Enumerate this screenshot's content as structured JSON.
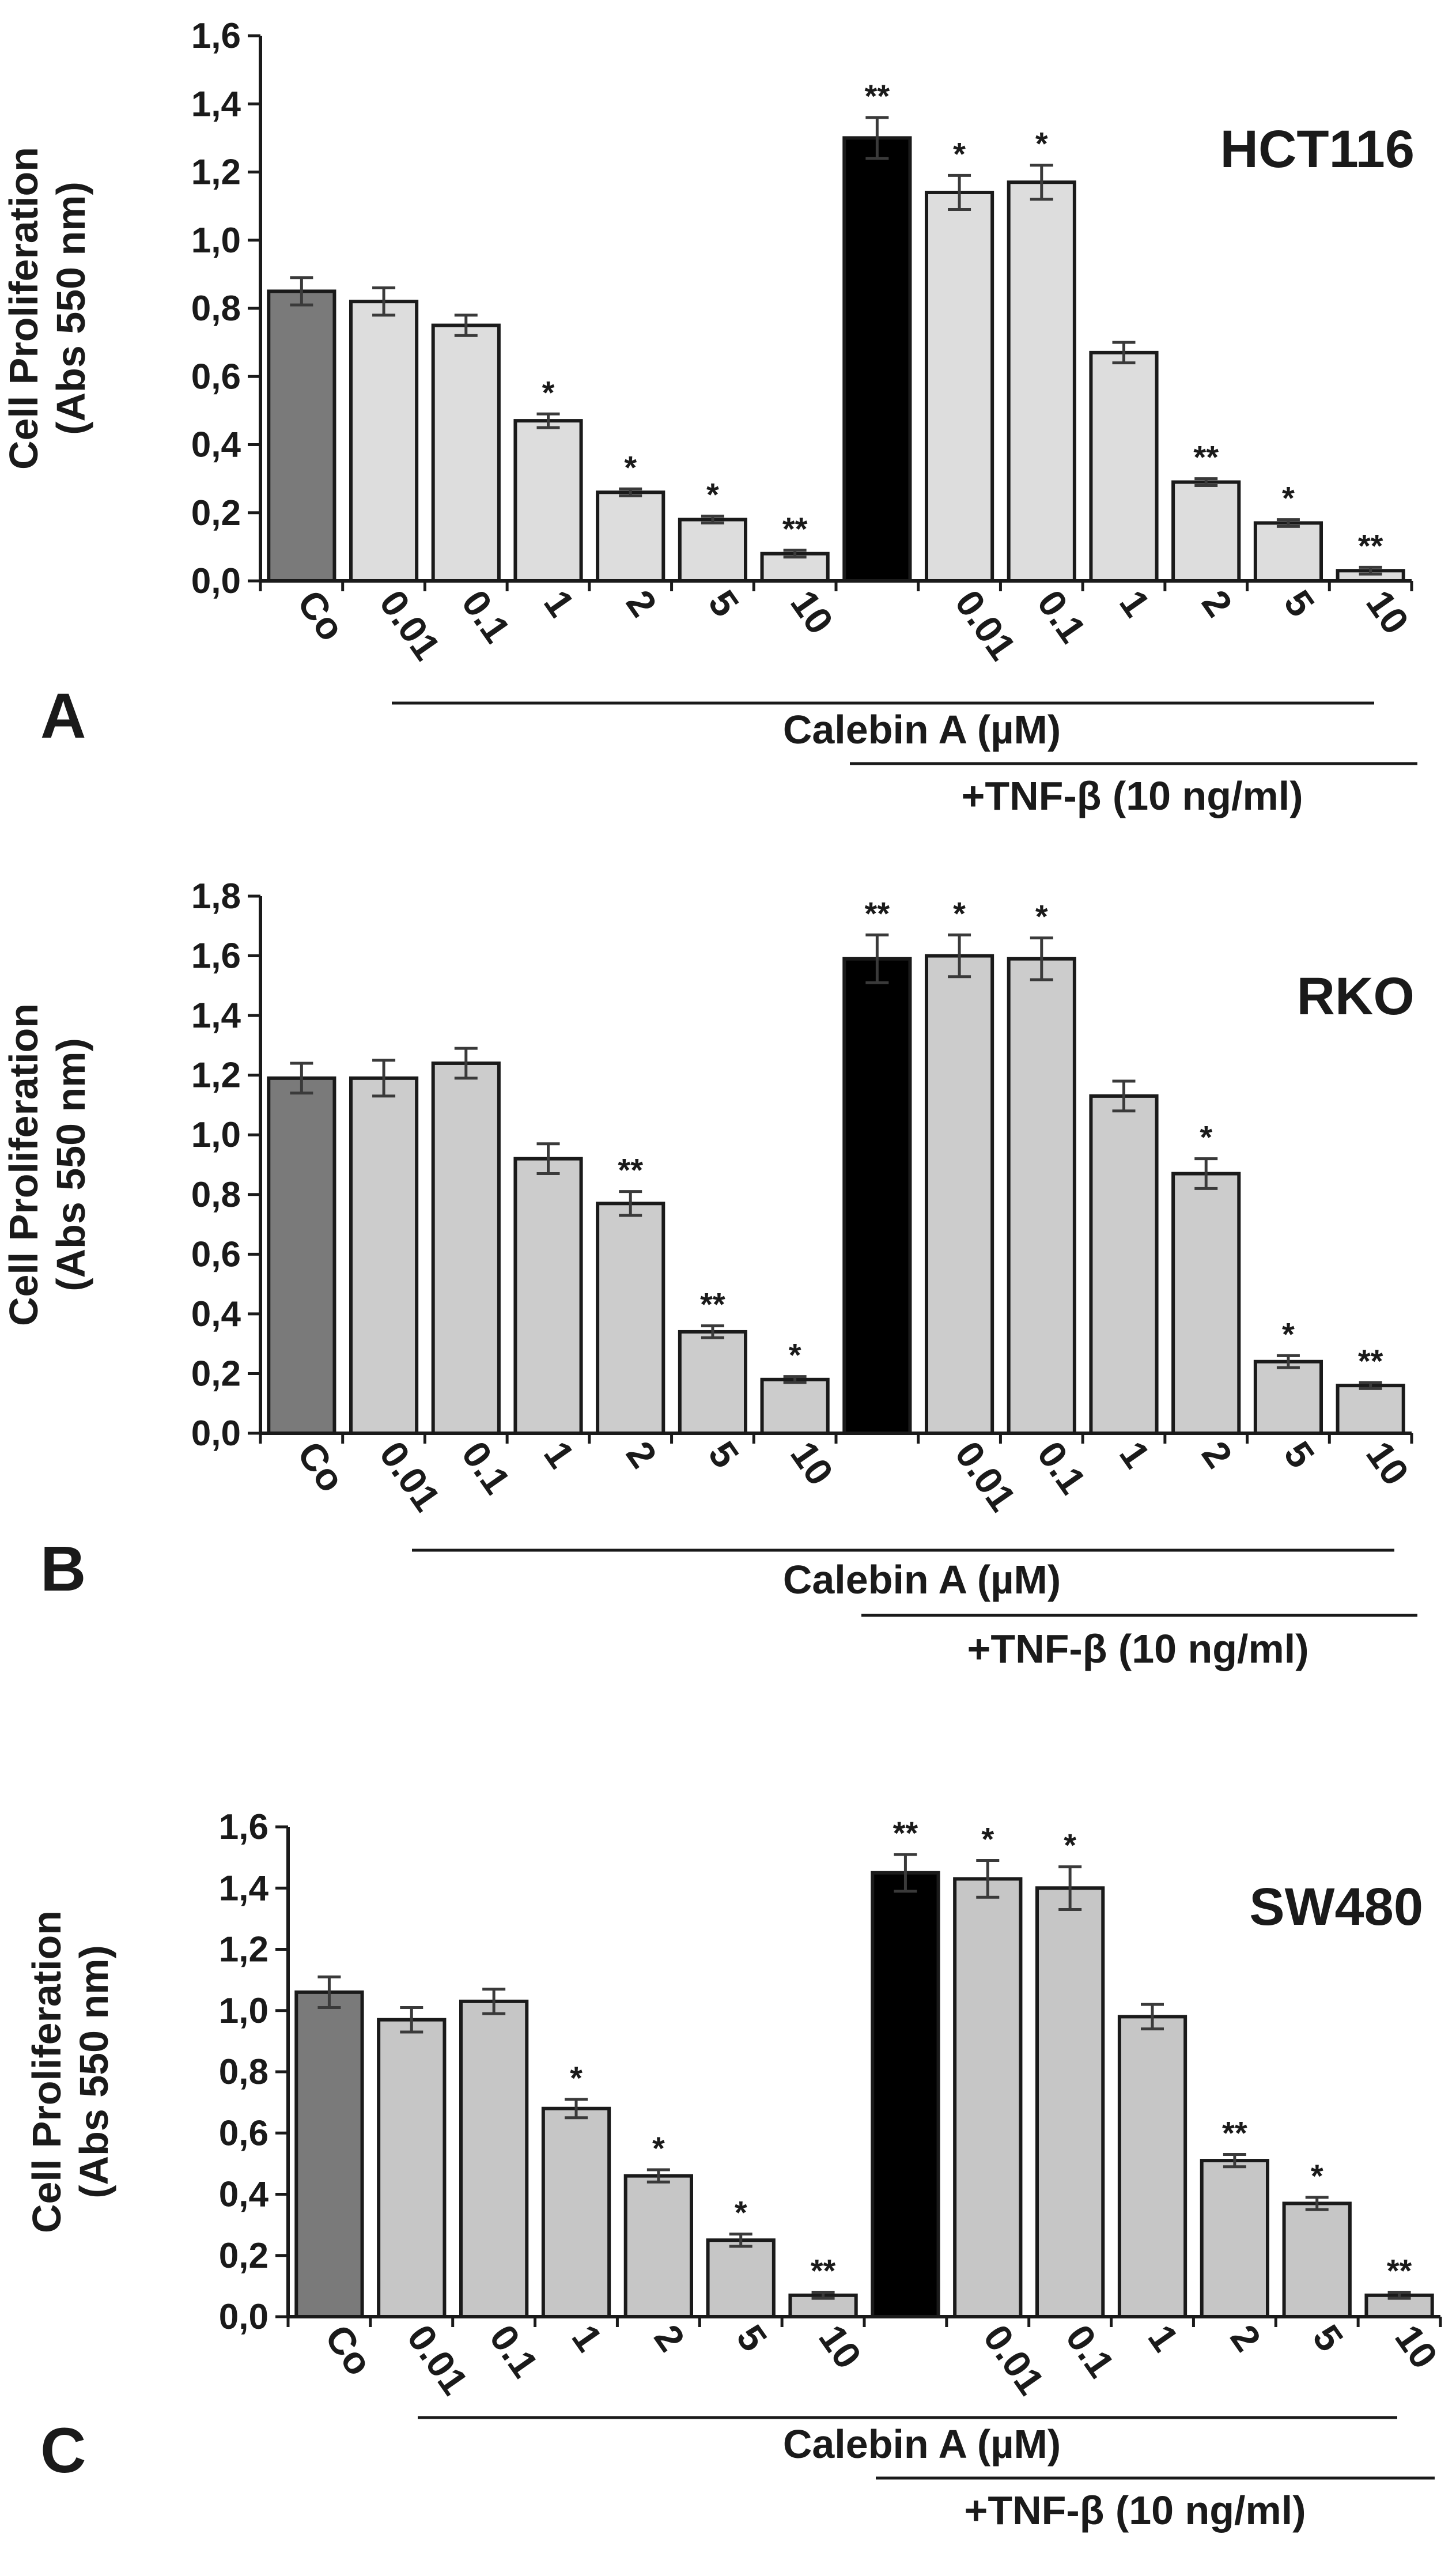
{
  "colors": {
    "control": "#7a7a7a",
    "tnf": "#000000",
    "calebin_a": "#dddddd",
    "calebin_b": "#cccccc",
    "calebin_c": "#c6c6c6"
  },
  "chart_data": [
    {
      "type": "bar",
      "panel": "A",
      "cell_line": "HCT116",
      "ylabel_line1": "Cell Proliferation",
      "ylabel_line2": "(Abs 550 nm)",
      "ylim": [
        0,
        1.6
      ],
      "yticks": [
        "0,0",
        "0,2",
        "0,4",
        "0,6",
        "0,8",
        "1,0",
        "1,2",
        "1,4",
        "1,6"
      ],
      "categories": [
        "Co",
        "0.01",
        "0.1",
        "1",
        "2",
        "5",
        "10",
        "",
        "0.01",
        "0.1",
        "1",
        "2",
        "5",
        "10"
      ],
      "values": [
        0.85,
        0.82,
        0.75,
        0.47,
        0.26,
        0.18,
        0.08,
        1.3,
        1.14,
        1.17,
        0.67,
        0.29,
        0.17,
        0.03
      ],
      "errors": [
        0.04,
        0.04,
        0.03,
        0.02,
        0.01,
        0.01,
        0.01,
        0.06,
        0.05,
        0.05,
        0.03,
        0.01,
        0.01,
        0.01
      ],
      "stars": [
        "",
        "",
        "",
        "*",
        "*",
        "*",
        "**",
        "**",
        "*",
        "*",
        "",
        "**",
        "*",
        "**"
      ],
      "bar_kinds": [
        "control",
        "calebin",
        "calebin",
        "calebin",
        "calebin",
        "calebin",
        "calebin",
        "tnf",
        "calebin",
        "calebin",
        "calebin",
        "calebin",
        "calebin",
        "calebin"
      ],
      "bracket_calebin": "Calebin A (µM)",
      "bracket_tnf": "+TNF-β (10 ng/ml)"
    },
    {
      "type": "bar",
      "panel": "B",
      "cell_line": "RKO",
      "ylabel_line1": "Cell Proliferation",
      "ylabel_line2": "(Abs 550 nm)",
      "ylim": [
        0,
        1.8
      ],
      "yticks": [
        "0,0",
        "0,2",
        "0,4",
        "0,6",
        "0,8",
        "1,0",
        "1,2",
        "1,4",
        "1,6",
        "1,8"
      ],
      "categories": [
        "Co",
        "0.01",
        "0.1",
        "1",
        "2",
        "5",
        "10",
        "",
        "0.01",
        "0.1",
        "1",
        "2",
        "5",
        "10"
      ],
      "values": [
        1.19,
        1.19,
        1.24,
        0.92,
        0.77,
        0.34,
        0.18,
        1.59,
        1.6,
        1.59,
        1.13,
        0.87,
        0.24,
        0.16
      ],
      "errors": [
        0.05,
        0.06,
        0.05,
        0.05,
        0.04,
        0.02,
        0.01,
        0.08,
        0.07,
        0.07,
        0.05,
        0.05,
        0.02,
        0.01
      ],
      "stars": [
        "",
        "",
        "",
        "",
        "**",
        "**",
        "*",
        "**",
        "*",
        "*",
        "",
        "*",
        "*",
        "**"
      ],
      "bar_kinds": [
        "control",
        "calebin",
        "calebin",
        "calebin",
        "calebin",
        "calebin",
        "calebin",
        "tnf",
        "calebin",
        "calebin",
        "calebin",
        "calebin",
        "calebin",
        "calebin"
      ],
      "bracket_calebin": "Calebin A (µM)",
      "bracket_tnf": "+TNF-β (10 ng/ml)"
    },
    {
      "type": "bar",
      "panel": "C",
      "cell_line": "SW480",
      "ylabel_line1": "Cell Proliferation",
      "ylabel_line2": "(Abs 550 nm)",
      "ylim": [
        0,
        1.6
      ],
      "yticks": [
        "0,0",
        "0,2",
        "0,4",
        "0,6",
        "0,8",
        "1,0",
        "1,2",
        "1,4",
        "1,6"
      ],
      "categories": [
        "Co",
        "0.01",
        "0.1",
        "1",
        "2",
        "5",
        "10",
        "",
        "0.01",
        "0.1",
        "1",
        "2",
        "5",
        "10"
      ],
      "values": [
        1.06,
        0.97,
        1.03,
        0.68,
        0.46,
        0.25,
        0.07,
        1.45,
        1.43,
        1.4,
        0.98,
        0.51,
        0.37,
        0.07
      ],
      "errors": [
        0.05,
        0.04,
        0.04,
        0.03,
        0.02,
        0.02,
        0.01,
        0.06,
        0.06,
        0.07,
        0.04,
        0.02,
        0.02,
        0.01
      ],
      "stars": [
        "",
        "",
        "",
        "*",
        "*",
        "*",
        "**",
        "**",
        "*",
        "*",
        "",
        "**",
        "*",
        "**"
      ],
      "bar_kinds": [
        "control",
        "calebin",
        "calebin",
        "calebin",
        "calebin",
        "calebin",
        "calebin",
        "tnf",
        "calebin",
        "calebin",
        "calebin",
        "calebin",
        "calebin",
        "calebin"
      ],
      "bracket_calebin": "Calebin A (µM)",
      "bracket_tnf": "+TNF-β (10 ng/ml)"
    }
  ]
}
